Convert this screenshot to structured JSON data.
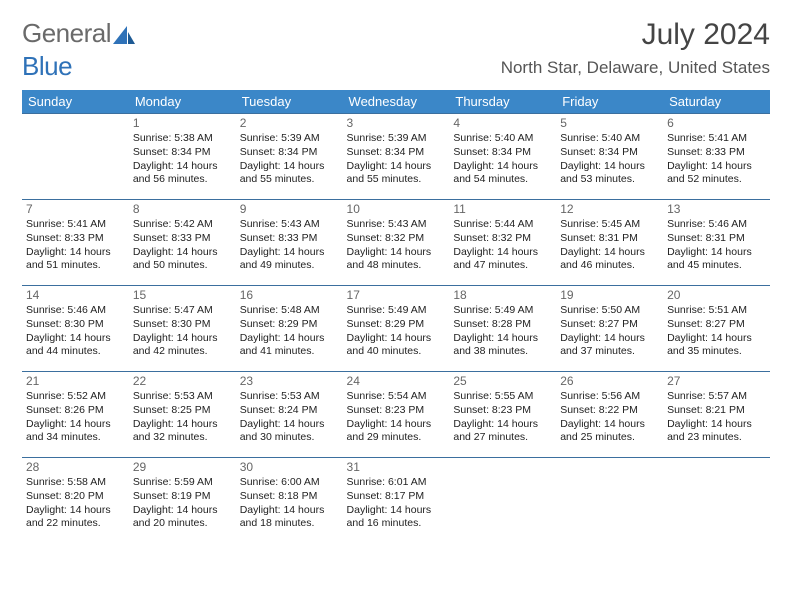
{
  "brand": {
    "part1": "General",
    "part2": "Blue"
  },
  "title": "July 2024",
  "location": "North Star, Delaware, United States",
  "colors": {
    "header_bg": "#3b87c8",
    "header_text": "#ffffff",
    "row_border": "#3b6f9e",
    "text": "#333333",
    "daynum": "#666666",
    "brand_gray": "#6a6a6a",
    "brand_blue": "#2f72b8",
    "background": "#ffffff"
  },
  "weekdays": [
    "Sunday",
    "Monday",
    "Tuesday",
    "Wednesday",
    "Thursday",
    "Friday",
    "Saturday"
  ],
  "weeks": [
    [
      null,
      {
        "n": "1",
        "sr": "Sunrise: 5:38 AM",
        "ss": "Sunset: 8:34 PM",
        "d1": "Daylight: 14 hours",
        "d2": "and 56 minutes."
      },
      {
        "n": "2",
        "sr": "Sunrise: 5:39 AM",
        "ss": "Sunset: 8:34 PM",
        "d1": "Daylight: 14 hours",
        "d2": "and 55 minutes."
      },
      {
        "n": "3",
        "sr": "Sunrise: 5:39 AM",
        "ss": "Sunset: 8:34 PM",
        "d1": "Daylight: 14 hours",
        "d2": "and 55 minutes."
      },
      {
        "n": "4",
        "sr": "Sunrise: 5:40 AM",
        "ss": "Sunset: 8:34 PM",
        "d1": "Daylight: 14 hours",
        "d2": "and 54 minutes."
      },
      {
        "n": "5",
        "sr": "Sunrise: 5:40 AM",
        "ss": "Sunset: 8:34 PM",
        "d1": "Daylight: 14 hours",
        "d2": "and 53 minutes."
      },
      {
        "n": "6",
        "sr": "Sunrise: 5:41 AM",
        "ss": "Sunset: 8:33 PM",
        "d1": "Daylight: 14 hours",
        "d2": "and 52 minutes."
      }
    ],
    [
      {
        "n": "7",
        "sr": "Sunrise: 5:41 AM",
        "ss": "Sunset: 8:33 PM",
        "d1": "Daylight: 14 hours",
        "d2": "and 51 minutes."
      },
      {
        "n": "8",
        "sr": "Sunrise: 5:42 AM",
        "ss": "Sunset: 8:33 PM",
        "d1": "Daylight: 14 hours",
        "d2": "and 50 minutes."
      },
      {
        "n": "9",
        "sr": "Sunrise: 5:43 AM",
        "ss": "Sunset: 8:33 PM",
        "d1": "Daylight: 14 hours",
        "d2": "and 49 minutes."
      },
      {
        "n": "10",
        "sr": "Sunrise: 5:43 AM",
        "ss": "Sunset: 8:32 PM",
        "d1": "Daylight: 14 hours",
        "d2": "and 48 minutes."
      },
      {
        "n": "11",
        "sr": "Sunrise: 5:44 AM",
        "ss": "Sunset: 8:32 PM",
        "d1": "Daylight: 14 hours",
        "d2": "and 47 minutes."
      },
      {
        "n": "12",
        "sr": "Sunrise: 5:45 AM",
        "ss": "Sunset: 8:31 PM",
        "d1": "Daylight: 14 hours",
        "d2": "and 46 minutes."
      },
      {
        "n": "13",
        "sr": "Sunrise: 5:46 AM",
        "ss": "Sunset: 8:31 PM",
        "d1": "Daylight: 14 hours",
        "d2": "and 45 minutes."
      }
    ],
    [
      {
        "n": "14",
        "sr": "Sunrise: 5:46 AM",
        "ss": "Sunset: 8:30 PM",
        "d1": "Daylight: 14 hours",
        "d2": "and 44 minutes."
      },
      {
        "n": "15",
        "sr": "Sunrise: 5:47 AM",
        "ss": "Sunset: 8:30 PM",
        "d1": "Daylight: 14 hours",
        "d2": "and 42 minutes."
      },
      {
        "n": "16",
        "sr": "Sunrise: 5:48 AM",
        "ss": "Sunset: 8:29 PM",
        "d1": "Daylight: 14 hours",
        "d2": "and 41 minutes."
      },
      {
        "n": "17",
        "sr": "Sunrise: 5:49 AM",
        "ss": "Sunset: 8:29 PM",
        "d1": "Daylight: 14 hours",
        "d2": "and 40 minutes."
      },
      {
        "n": "18",
        "sr": "Sunrise: 5:49 AM",
        "ss": "Sunset: 8:28 PM",
        "d1": "Daylight: 14 hours",
        "d2": "and 38 minutes."
      },
      {
        "n": "19",
        "sr": "Sunrise: 5:50 AM",
        "ss": "Sunset: 8:27 PM",
        "d1": "Daylight: 14 hours",
        "d2": "and 37 minutes."
      },
      {
        "n": "20",
        "sr": "Sunrise: 5:51 AM",
        "ss": "Sunset: 8:27 PM",
        "d1": "Daylight: 14 hours",
        "d2": "and 35 minutes."
      }
    ],
    [
      {
        "n": "21",
        "sr": "Sunrise: 5:52 AM",
        "ss": "Sunset: 8:26 PM",
        "d1": "Daylight: 14 hours",
        "d2": "and 34 minutes."
      },
      {
        "n": "22",
        "sr": "Sunrise: 5:53 AM",
        "ss": "Sunset: 8:25 PM",
        "d1": "Daylight: 14 hours",
        "d2": "and 32 minutes."
      },
      {
        "n": "23",
        "sr": "Sunrise: 5:53 AM",
        "ss": "Sunset: 8:24 PM",
        "d1": "Daylight: 14 hours",
        "d2": "and 30 minutes."
      },
      {
        "n": "24",
        "sr": "Sunrise: 5:54 AM",
        "ss": "Sunset: 8:23 PM",
        "d1": "Daylight: 14 hours",
        "d2": "and 29 minutes."
      },
      {
        "n": "25",
        "sr": "Sunrise: 5:55 AM",
        "ss": "Sunset: 8:23 PM",
        "d1": "Daylight: 14 hours",
        "d2": "and 27 minutes."
      },
      {
        "n": "26",
        "sr": "Sunrise: 5:56 AM",
        "ss": "Sunset: 8:22 PM",
        "d1": "Daylight: 14 hours",
        "d2": "and 25 minutes."
      },
      {
        "n": "27",
        "sr": "Sunrise: 5:57 AM",
        "ss": "Sunset: 8:21 PM",
        "d1": "Daylight: 14 hours",
        "d2": "and 23 minutes."
      }
    ],
    [
      {
        "n": "28",
        "sr": "Sunrise: 5:58 AM",
        "ss": "Sunset: 8:20 PM",
        "d1": "Daylight: 14 hours",
        "d2": "and 22 minutes."
      },
      {
        "n": "29",
        "sr": "Sunrise: 5:59 AM",
        "ss": "Sunset: 8:19 PM",
        "d1": "Daylight: 14 hours",
        "d2": "and 20 minutes."
      },
      {
        "n": "30",
        "sr": "Sunrise: 6:00 AM",
        "ss": "Sunset: 8:18 PM",
        "d1": "Daylight: 14 hours",
        "d2": "and 18 minutes."
      },
      {
        "n": "31",
        "sr": "Sunrise: 6:01 AM",
        "ss": "Sunset: 8:17 PM",
        "d1": "Daylight: 14 hours",
        "d2": "and 16 minutes."
      },
      null,
      null,
      null
    ]
  ]
}
